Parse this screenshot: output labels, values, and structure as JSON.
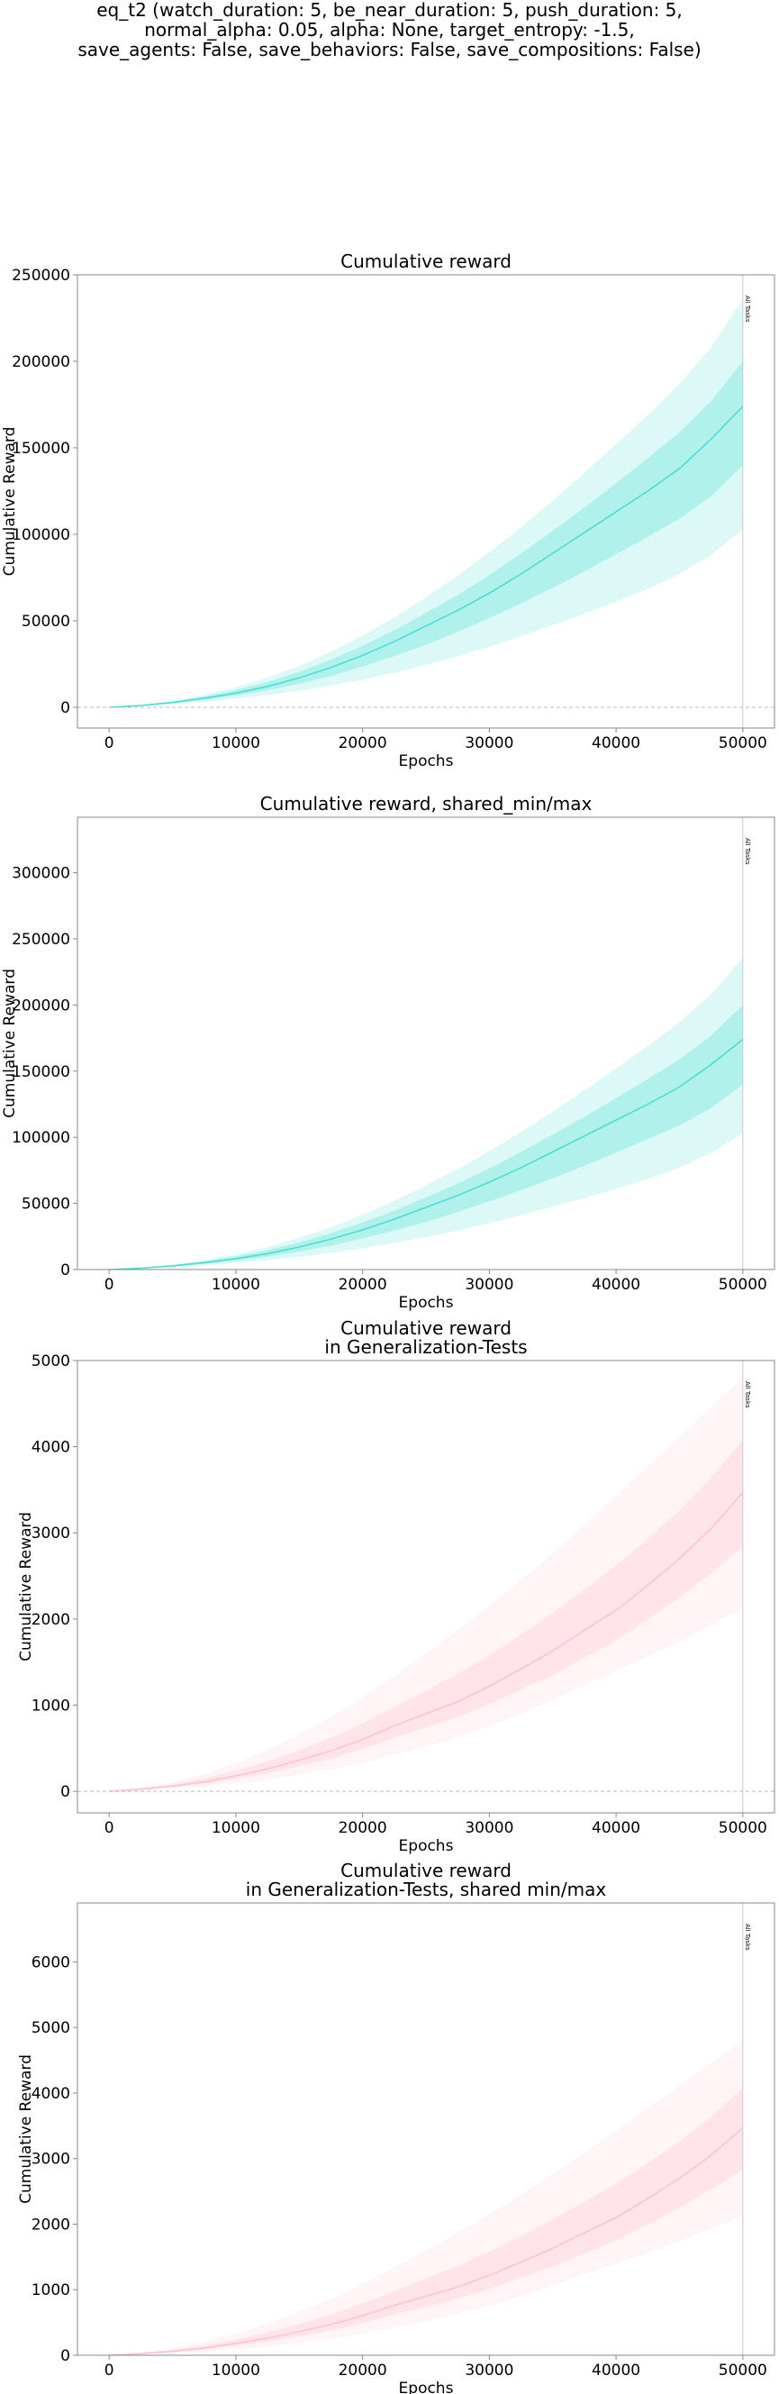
{
  "figure": {
    "suptitle_lines": [
      "eq_t2 (watch_duration: 5, be_near_duration: 5, push_duration: 5,",
      "normal_alpha: 0.05, alpha: None, target_entropy: -1.5,",
      "save_agents: False, save_behaviors: False, save_compositions: False)"
    ]
  },
  "chart_data": [
    {
      "type": "line",
      "title": [
        "Cumulative reward"
      ],
      "xlabel": "Epochs",
      "ylabel": "Cumulative Reward",
      "xlim": [
        -2500,
        52500
      ],
      "ylim": [
        -12000,
        250000
      ],
      "xticks": [
        0,
        10000,
        20000,
        30000,
        40000,
        50000
      ],
      "yticks": [
        0,
        50000,
        100000,
        150000,
        200000,
        250000
      ],
      "color": "#40e0d0",
      "zero_line": true,
      "vline": {
        "x": 50000,
        "label": "All Tasks"
      },
      "series": [
        {
          "x": [
            0,
            2500,
            5000,
            7500,
            10000,
            12500,
            15000,
            17500,
            20000,
            22500,
            25000,
            27500,
            30000,
            32500,
            35000,
            37500,
            40000,
            42500,
            45000,
            47500,
            50000
          ],
          "mean": [
            0,
            1000,
            2800,
            5200,
            8200,
            12000,
            17000,
            23000,
            30000,
            38000,
            47000,
            56000,
            66000,
            77000,
            89000,
            101000,
            113000,
            125000,
            138000,
            155000,
            174000
          ],
          "min": [
            0,
            700,
            1800,
            3300,
            5000,
            7000,
            9500,
            12500,
            16000,
            20000,
            24500,
            29500,
            35000,
            41000,
            47500,
            54000,
            61000,
            68500,
            77000,
            88000,
            103000
          ],
          "max": [
            0,
            1300,
            3700,
            7100,
            11500,
            17000,
            24000,
            32000,
            41500,
            52000,
            63500,
            76000,
            89500,
            104000,
            119500,
            135500,
            152000,
            169000,
            187000,
            208000,
            236000
          ],
          "q25": [
            0,
            900,
            2300,
            4300,
            6800,
            9800,
            13600,
            18000,
            23500,
            29500,
            36000,
            43500,
            51500,
            60000,
            69000,
            78500,
            88500,
            98500,
            109000,
            122000,
            140000
          ],
          "q75": [
            0,
            1150,
            3300,
            6200,
            10000,
            14600,
            20500,
            27500,
            35500,
            44500,
            54500,
            65000,
            76500,
            89000,
            102000,
            115500,
            129500,
            144000,
            159000,
            177000,
            200000
          ]
        }
      ]
    },
    {
      "type": "line",
      "title": [
        "Cumulative reward, shared_min/max"
      ],
      "xlabel": "Epochs",
      "ylabel": "Cumulative Reward",
      "xlim": [
        -2500,
        52500
      ],
      "ylim": [
        0,
        342000
      ],
      "xticks": [
        0,
        10000,
        20000,
        30000,
        40000,
        50000
      ],
      "yticks": [
        0,
        50000,
        100000,
        150000,
        200000,
        250000,
        300000
      ],
      "color": "#40e0d0",
      "zero_line": false,
      "vline": {
        "x": 50000,
        "label": "All Tasks"
      },
      "series": [
        {
          "x": [
            0,
            2500,
            5000,
            7500,
            10000,
            12500,
            15000,
            17500,
            20000,
            22500,
            25000,
            27500,
            30000,
            32500,
            35000,
            37500,
            40000,
            42500,
            45000,
            47500,
            50000
          ],
          "mean": [
            0,
            1000,
            2800,
            5200,
            8200,
            12000,
            17000,
            23000,
            30000,
            38000,
            47000,
            56000,
            66000,
            77000,
            89000,
            101000,
            113000,
            125000,
            138000,
            155000,
            174000
          ],
          "min": [
            0,
            700,
            1800,
            3300,
            5000,
            7000,
            9500,
            12500,
            16000,
            20000,
            24500,
            29500,
            35000,
            41000,
            47500,
            54000,
            61000,
            68500,
            77000,
            88000,
            103000
          ],
          "max": [
            0,
            1300,
            3700,
            7100,
            11500,
            17000,
            24000,
            32000,
            41500,
            52000,
            63500,
            76000,
            89500,
            104000,
            119500,
            135500,
            152000,
            169000,
            187000,
            208000,
            236000
          ],
          "q25": [
            0,
            900,
            2300,
            4300,
            6800,
            9800,
            13600,
            18000,
            23500,
            29500,
            36000,
            43500,
            51500,
            60000,
            69000,
            78500,
            88500,
            98500,
            109000,
            122000,
            140000
          ],
          "q75": [
            0,
            1150,
            3300,
            6200,
            10000,
            14600,
            20500,
            27500,
            35500,
            44500,
            54500,
            65000,
            76500,
            89000,
            102000,
            115500,
            129500,
            144000,
            159000,
            177000,
            200000
          ]
        }
      ]
    },
    {
      "type": "line",
      "title": [
        "Cumulative reward",
        "in Generalization-Tests"
      ],
      "xlabel": "Epochs",
      "ylabel": "Cumulative Reward",
      "xlim": [
        -2500,
        52500
      ],
      "ylim": [
        -250,
        5000
      ],
      "xticks": [
        0,
        10000,
        20000,
        30000,
        40000,
        50000
      ],
      "yticks": [
        0,
        1000,
        2000,
        3000,
        4000,
        5000
      ],
      "color": "#ffc0cb",
      "zero_line": true,
      "vline": {
        "x": 50000,
        "label": "All Tasks"
      },
      "series": [
        {
          "x": [
            0,
            2500,
            5000,
            7500,
            10000,
            12500,
            15000,
            17500,
            20000,
            22500,
            25000,
            27500,
            30000,
            32500,
            35000,
            37500,
            40000,
            42500,
            45000,
            47500,
            50000
          ],
          "mean": [
            0,
            25,
            60,
            110,
            180,
            260,
            360,
            470,
            600,
            760,
            900,
            1040,
            1220,
            1420,
            1630,
            1870,
            2100,
            2390,
            2700,
            3050,
            3470
          ],
          "min": [
            0,
            12,
            30,
            55,
            90,
            135,
            190,
            250,
            330,
            420,
            520,
            630,
            760,
            900,
            1060,
            1230,
            1400,
            1560,
            1740,
            1930,
            2130
          ],
          "max": [
            0,
            40,
            105,
            200,
            330,
            480,
            660,
            860,
            1090,
            1340,
            1600,
            1870,
            2150,
            2450,
            2760,
            3090,
            3430,
            3770,
            4110,
            4460,
            4800
          ],
          "q25": [
            0,
            20,
            48,
            88,
            145,
            210,
            290,
            380,
            490,
            620,
            740,
            860,
            1010,
            1180,
            1350,
            1550,
            1750,
            1990,
            2250,
            2530,
            2840
          ],
          "q75": [
            0,
            32,
            80,
            150,
            240,
            350,
            480,
            620,
            790,
            980,
            1170,
            1360,
            1580,
            1820,
            2070,
            2340,
            2620,
            2930,
            3260,
            3640,
            4080
          ]
        }
      ]
    },
    {
      "type": "line",
      "title": [
        "Cumulative reward",
        "in Generalization-Tests, shared min/max"
      ],
      "xlabel": "Epochs",
      "ylabel": "Cumulative Reward",
      "xlim": [
        -2500,
        52500
      ],
      "ylim": [
        0,
        6900
      ],
      "xticks": [
        0,
        10000,
        20000,
        30000,
        40000,
        50000
      ],
      "yticks": [
        0,
        1000,
        2000,
        3000,
        4000,
        5000,
        6000
      ],
      "color": "#ffc0cb",
      "zero_line": false,
      "vline": {
        "x": 50000,
        "label": "All Tasks"
      },
      "series": [
        {
          "x": [
            0,
            2500,
            5000,
            7500,
            10000,
            12500,
            15000,
            17500,
            20000,
            22500,
            25000,
            27500,
            30000,
            32500,
            35000,
            37500,
            40000,
            42500,
            45000,
            47500,
            50000
          ],
          "mean": [
            0,
            25,
            60,
            110,
            180,
            260,
            360,
            470,
            600,
            760,
            900,
            1040,
            1220,
            1420,
            1630,
            1870,
            2100,
            2390,
            2700,
            3050,
            3470
          ],
          "min": [
            0,
            12,
            30,
            55,
            90,
            135,
            190,
            250,
            330,
            420,
            520,
            630,
            760,
            900,
            1060,
            1230,
            1400,
            1560,
            1740,
            1930,
            2130
          ],
          "max": [
            0,
            40,
            105,
            200,
            330,
            480,
            660,
            860,
            1090,
            1340,
            1600,
            1870,
            2150,
            2450,
            2760,
            3090,
            3430,
            3770,
            4110,
            4460,
            4800
          ],
          "q25": [
            0,
            20,
            48,
            88,
            145,
            210,
            290,
            380,
            490,
            620,
            740,
            860,
            1010,
            1180,
            1350,
            1550,
            1750,
            1990,
            2250,
            2530,
            2840
          ],
          "q75": [
            0,
            32,
            80,
            150,
            240,
            350,
            480,
            620,
            790,
            980,
            1170,
            1360,
            1580,
            1820,
            2070,
            2340,
            2620,
            2930,
            3260,
            3640,
            4080
          ]
        }
      ]
    }
  ]
}
